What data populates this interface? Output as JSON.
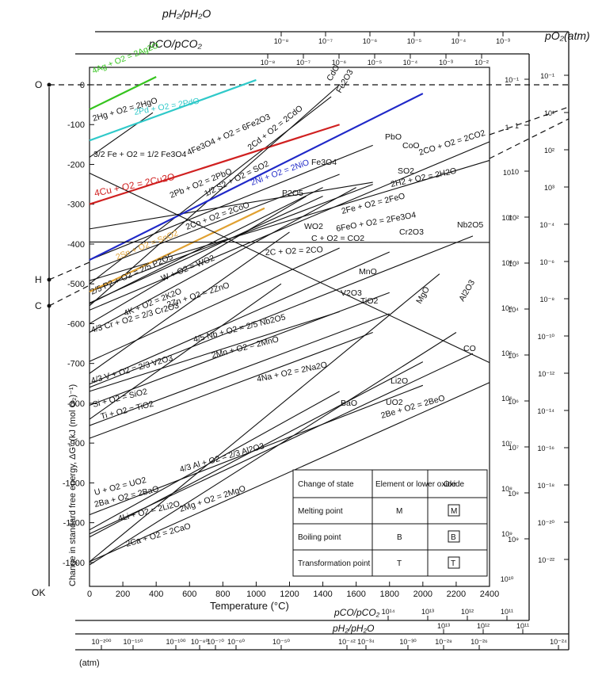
{
  "chart_data": {
    "type": "line",
    "ylabel": "Change in standard free energy, ΔG° (kJ (mol O₂)⁻¹)",
    "xlabel": "Temperature (°C)",
    "right_axis_title": "pO₂(atm)",
    "top_axis_1_title": "pH₂/pH₂O",
    "top_axis_2_title": "pCO/pCO₂",
    "bottom_axis_1_title": "pCO/pCO₂",
    "bottom_axis_2_title": "pH₂/pH₂O",
    "bottom_atm_label": "(atm)",
    "zero_kelvin_label": "OK",
    "pivot_labels": [
      "O",
      "H",
      "C"
    ],
    "xlim": [
      0,
      2400
    ],
    "ylim": [
      -1300,
      80
    ],
    "x_ticks": [
      0,
      200,
      400,
      600,
      800,
      1000,
      1200,
      1400,
      1600,
      1800,
      2000,
      2200,
      2400
    ],
    "y_ticks": [
      0,
      -100,
      -200,
      -300,
      -400,
      -500,
      -600,
      -700,
      -800,
      -900,
      -1000,
      -1100,
      -1200
    ],
    "series": [
      {
        "name": "4Ag + O2 = 2Ag2O",
        "color": "#35c41e",
        "x": [
          0,
          400
        ],
        "y": [
          -62,
          20
        ]
      },
      {
        "name": "2Hg + O2 = 2HgO",
        "x": [
          0,
          380
        ],
        "y": [
          -182,
          -70
        ]
      },
      {
        "name": "2Pd + O2 = 2PdO",
        "color": "#2fc9c9",
        "x": [
          0,
          1000
        ],
        "y": [
          -140,
          12
        ]
      },
      {
        "name": "3/2 Fe + O2 = 1/2 Fe3O4",
        "x": [
          0,
          1400
        ],
        "y": [
          -550,
          -258
        ]
      },
      {
        "name": "4Fe3O4 + O2 = 6Fe2O3",
        "x": [
          0,
          1450
        ],
        "y": [
          -500,
          -30
        ]
      },
      {
        "name": "4Cu + O2 = 2Cu2O",
        "color": "#d02020",
        "x": [
          0,
          1500
        ],
        "y": [
          -300,
          -100
        ]
      },
      {
        "name": "2Cd + O2 = 2CdO",
        "x": [
          0,
          1500
        ],
        "y": [
          -555,
          0
        ]
      },
      {
        "name": "2Pb + O2 = 2PbO",
        "x": [
          0,
          1700
        ],
        "y": [
          -440,
          -152
        ]
      },
      {
        "name": "1/2 S2 + O2 = SO2",
        "x": [
          0,
          1700
        ],
        "y": [
          -362,
          -245
        ]
      },
      {
        "name": "2Ni + O2 = 2NiO",
        "color": "#1f28c8",
        "x": [
          0,
          2000
        ],
        "y": [
          -440,
          -22
        ]
      },
      {
        "name": "2CO + O2 = 2CO2",
        "x": [
          0,
          2400
        ],
        "y": [
          -566,
          -143
        ]
      },
      {
        "name": "2H2 + O2 = 2H2O",
        "x": [
          0,
          2400
        ],
        "y": [
          -492,
          -190
        ]
      },
      {
        "name": "2Fe + O2 = 2FeO",
        "x": [
          0,
          1700
        ],
        "y": [
          -520,
          -250
        ]
      },
      {
        "name": "6FeO + O2 = 2Fe3O4",
        "x": [
          0,
          1600
        ],
        "y": [
          -622,
          -258
        ]
      },
      {
        "name": "2Co + O2 = 2CoO",
        "x": [
          0,
          1500
        ],
        "y": [
          -468,
          -225
        ]
      },
      {
        "name": "2Sn + O2 = SnO2",
        "color": "#e0a030",
        "x": [
          0,
          1050
        ],
        "y": [
          -520,
          -310
        ]
      },
      {
        "name": "W + O2 = WO2",
        "x": [
          0,
          1400
        ],
        "y": [
          -548,
          -280
        ]
      },
      {
        "name": "C + O2 = CO2",
        "x": [
          0,
          2400
        ],
        "y": [
          -395,
          -396
        ]
      },
      {
        "name": "2C + O2 = 2CO",
        "x": [
          0,
          2400
        ],
        "y": [
          -222,
          -698
        ]
      },
      {
        "name": "2/5 P2 + O2 = 2/5 P2O5",
        "x": [
          0,
          1300
        ],
        "y": [
          -600,
          -280
        ]
      },
      {
        "name": "4K + O2 = 2K2O",
        "x": [
          0,
          1200
        ],
        "y": [
          -725,
          -370
        ]
      },
      {
        "name": "2Zn + O2 = 2ZnO",
        "x": [
          0,
          1500
        ],
        "y": [
          -695,
          -410
        ]
      },
      {
        "name": "4/3 Cr + O2 = 2/3 Cr2O3",
        "x": [
          0,
          1800
        ],
        "y": [
          -752,
          -420
        ]
      },
      {
        "name": "4/5 Nb + O2 = 2/5 Nb2O5",
        "x": [
          0,
          2300
        ],
        "y": [
          -760,
          -380
        ]
      },
      {
        "name": "2Mn + O2 = 2MnO",
        "x": [
          0,
          1500
        ],
        "y": [
          -770,
          -570
        ]
      },
      {
        "name": "4Na + O2 = 2Na2O",
        "x": [
          0,
          1150
        ],
        "y": [
          -840,
          -500
        ]
      },
      {
        "name": "4/3 V + O2 = 2/3 V2O3",
        "x": [
          0,
          1800
        ],
        "y": [
          -805,
          -522
        ]
      },
      {
        "name": "Si + O2 = SiO2",
        "x": [
          0,
          1800
        ],
        "y": [
          -856,
          -575
        ]
      },
      {
        "name": "Ti + O2 = TiO2",
        "x": [
          0,
          1700
        ],
        "y": [
          -888,
          -622
        ]
      },
      {
        "name": "4/3 Al + O2 = 2/3 Al2O3",
        "x": [
          0,
          2300
        ],
        "y": [
          -1128,
          -675
        ]
      },
      {
        "name": "2Mg + O2 = 2MgO",
        "x": [
          0,
          2100
        ],
        "y": [
          -1198,
          -475
        ]
      },
      {
        "name": "U + O2 = UO2",
        "x": [
          0,
          2000
        ],
        "y": [
          -1080,
          -755
        ]
      },
      {
        "name": "2Ba + O2 = 2BaO",
        "x": [
          0,
          1500
        ],
        "y": [
          -1118,
          -770
        ]
      },
      {
        "name": "4Li + O2 = 2Li2O",
        "x": [
          0,
          2000
        ],
        "y": [
          -1136,
          -696
        ]
      },
      {
        "name": "2Be + O2 = 2BeO",
        "x": [
          0,
          2400
        ],
        "y": [
          -1198,
          -748
        ]
      },
      {
        "name": "2Ca + O2 = 2CaO",
        "x": [
          0,
          2200
        ],
        "y": [
          -1206,
          -622
        ]
      }
    ],
    "labels": {
      "Ag2O": "4Ag + O2 = 2Ag2O",
      "HgO": "2Hg + O2 = 2HgO",
      "PdO": "2Pd + O2 = 2PdO",
      "Fe3O4_a": "3/2 Fe + O2 = 1/2 Fe3O4",
      "Fe2O3": "4Fe3O4 + O2 = 6Fe2O3",
      "Cu2O": "4Cu + O2 = 2Cu2O",
      "CdO": "2Cd + O2 = 2CdO",
      "PbO": "2Pb + O2 = 2PbO",
      "SO2": "1/2 S2 + O2 = SO2",
      "NiO": "2Ni + O2 = 2NiO",
      "CO2co": "2CO + O2 = 2CO2",
      "H2O": "2H2 + O2 = 2H2O",
      "FeO": "2Fe + O2 = 2FeO",
      "Fe3O4_b": "6FeO + O2 = 2Fe3O4",
      "CoO": "2Co + O2 = 2CoO",
      "SnO2": "2Sn + O2 = SnO2",
      "WO2": "W + O2 = WO2",
      "CO2": "C + O2 = CO2",
      "CO": "2C + O2 = 2CO",
      "P2O5": "2/5 P2 + O2 = 2/5 P2O5",
      "K2O": "4K + O2 = 2K2O",
      "ZnO": "2Zn + O2 = 2ZnO",
      "Cr2O3": "4/3 Cr + O2 = 2/3 Cr2O3",
      "Nb2O5": "4/5 Nb + O2 = 2/5 Nb2O5",
      "MnO": "2Mn + O2 = 2MnO",
      "Na2O": "4Na + O2 = 2Na2O",
      "V2O3": "4/3 V + O2 = 2/3 V2O3",
      "SiO2": "Si + O2 = SiO2",
      "TiO2": "Ti + O2 = TiO2",
      "Al2O3": "4/3 Al + O2 = 2/3 Al2O3",
      "MgO": "2Mg + O2 = 2MgO",
      "UO2": "U + O2 = UO2",
      "BaO": "2Ba + O2 = 2BaO",
      "Li2O": "4Li + O2 = 2Li2O",
      "BeO": "2Be + O2 = 2BeO",
      "CaO": "2Ca + O2 = 2CaO",
      "tag_CdO": "CdO",
      "tag_Fe2O3": "Fe2O3",
      "tag_PbO": "PbO",
      "tag_CoO": "CoO",
      "tag_Fe3O4": "Fe3O4",
      "tag_SO2": "SO2",
      "tag_P2O5": "P2O5",
      "tag_WO2": "WO2",
      "tag_Cr2O3": "Cr2O3",
      "tag_Nb2O5": "Nb2O5",
      "tag_MnO": "MnO",
      "tag_V2O3": "V2O3",
      "tag_TiO2": "TiO2",
      "tag_MgO": "MgO",
      "tag_Al2O3": "Al2O3",
      "tag_CO": "CO",
      "tag_Li2O": "Li2O",
      "tag_UO2": "UO2",
      "tag_BaO": "BaO"
    },
    "top_h2_ticks": [
      "10⁻⁸",
      "10⁻⁷",
      "10⁻⁶",
      "10⁻⁵",
      "10⁻⁴",
      "10⁻³"
    ],
    "top_co_ticks": [
      "10⁻⁸",
      "10⁻⁷",
      "10⁻⁶",
      "10⁻⁵",
      "10⁻⁴",
      "10⁻³",
      "10⁻²"
    ],
    "bottom_co_ticks": [
      "10¹⁴",
      "10¹³",
      "10¹²",
      "10¹¹"
    ],
    "bottom_h2_ticks": [
      "10¹³",
      "10¹²",
      "10¹¹"
    ],
    "bottom_po2_ticks": [
      "10⁻²⁰⁰",
      "10⁻¹⁵⁰",
      "10⁻¹⁰⁰",
      "10⁻⁸⁰",
      "10⁻⁷⁰",
      "10⁻⁶⁰",
      "10⁻⁵⁰",
      "10⁻⁴²",
      "10⁻³⁴",
      "10⁻³⁰",
      "10⁻²⁸",
      "10⁻²⁶",
      "10⁻²⁴"
    ],
    "right_h2_ticks": [
      "1",
      "10",
      "10²",
      "10³",
      "10⁴",
      "10⁵",
      "10⁶",
      "10⁷",
      "10⁸",
      "10⁹",
      "10¹⁰"
    ],
    "right_co_ticks": [
      "10⁻¹",
      "1",
      "10",
      "10²",
      "10³",
      "10⁴",
      "10⁵",
      "10⁶",
      "10⁷",
      "10⁸",
      "10⁹"
    ],
    "right_po2_ticks": [
      "10⁻¹",
      "10¹",
      "10²",
      "10³",
      "10⁻⁴",
      "10⁻⁶",
      "10⁻⁸",
      "10⁻¹⁰",
      "10⁻¹²",
      "10⁻¹⁴",
      "10⁻¹⁶",
      "10⁻¹⁸",
      "10⁻²⁰",
      "10⁻²²"
    ],
    "legend": {
      "headers": [
        "Change of state",
        "Element or lower oxide",
        "Oxide"
      ],
      "rows": [
        [
          "Melting point",
          "M",
          "M"
        ],
        [
          "Boiling point",
          "B",
          "B"
        ],
        [
          "Transformation point",
          "T",
          "T"
        ]
      ]
    }
  }
}
